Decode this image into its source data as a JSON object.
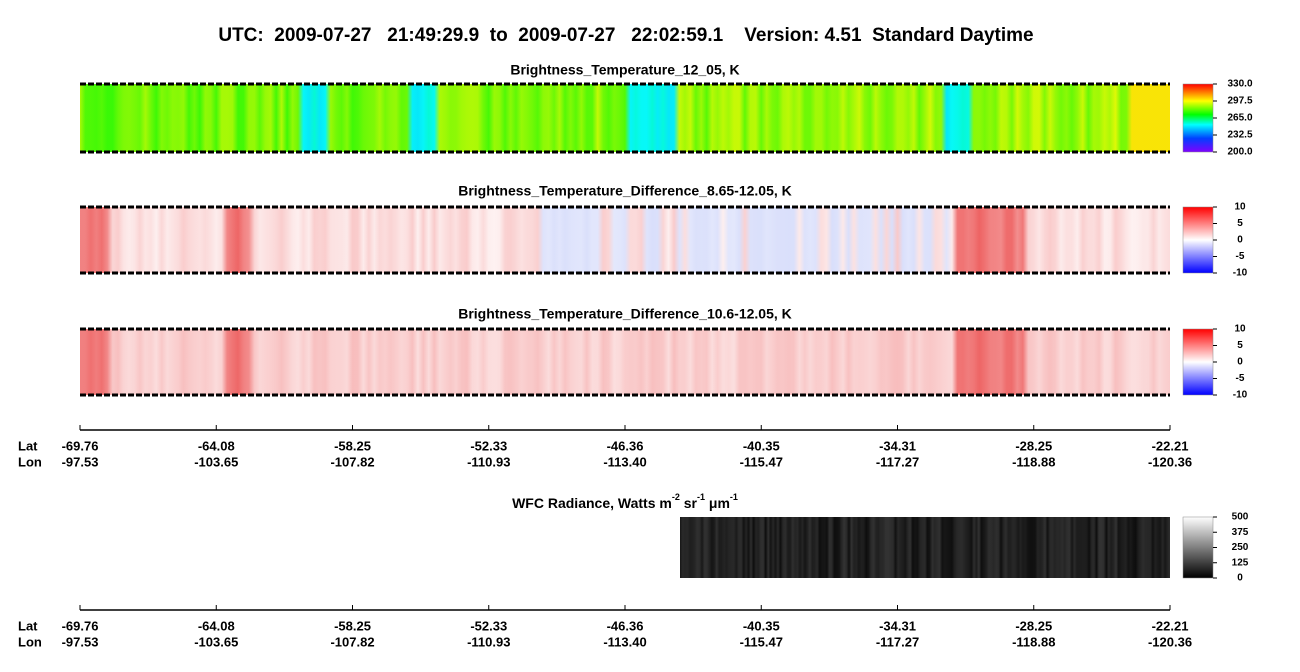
{
  "title": "UTC:  2009-07-27   21:49:29.9  to  2009-07-27   22:02:59.1    Version: 4.51  Standard Daytime",
  "panels": [
    {
      "title": "Brightness_Temperature_12_05, K",
      "colorbar_ticks": [
        {
          "value": 330,
          "label": "330.0"
        },
        {
          "value": 297.5,
          "label": "297.5"
        },
        {
          "value": 265,
          "label": "265.0"
        },
        {
          "value": 232.5,
          "label": "232.5"
        },
        {
          "value": 200,
          "label": "200.0"
        }
      ]
    },
    {
      "title": "Brightness_Temperature_Difference_8.65-12.05, K",
      "colorbar_ticks": [
        10,
        5,
        0,
        -5,
        -10
      ]
    },
    {
      "title": "Brightness_Temperature_Difference_10.6-12.05, K",
      "colorbar_ticks": [
        10,
        5,
        0,
        -5,
        -10
      ]
    },
    {
      "title_parts": [
        "WFC Radiance, Watts m",
        "-2",
        " sr",
        "-1",
        " μm",
        "-1"
      ],
      "colorbar_ticks": [
        500,
        375,
        250,
        125,
        0
      ]
    }
  ],
  "axis": {
    "lat_label": "Lat",
    "lon_label": "Lon",
    "lat": [
      -69.76,
      -64.08,
      -58.25,
      -52.33,
      -46.36,
      -40.35,
      -34.31,
      -28.25,
      -22.21
    ],
    "lon": [
      -97.53,
      -103.65,
      -107.82,
      -110.93,
      {
        "value": -113.4,
        "label": "-113.40"
      },
      -115.47,
      -117.27,
      -118.88,
      -120.36
    ]
  }
}
